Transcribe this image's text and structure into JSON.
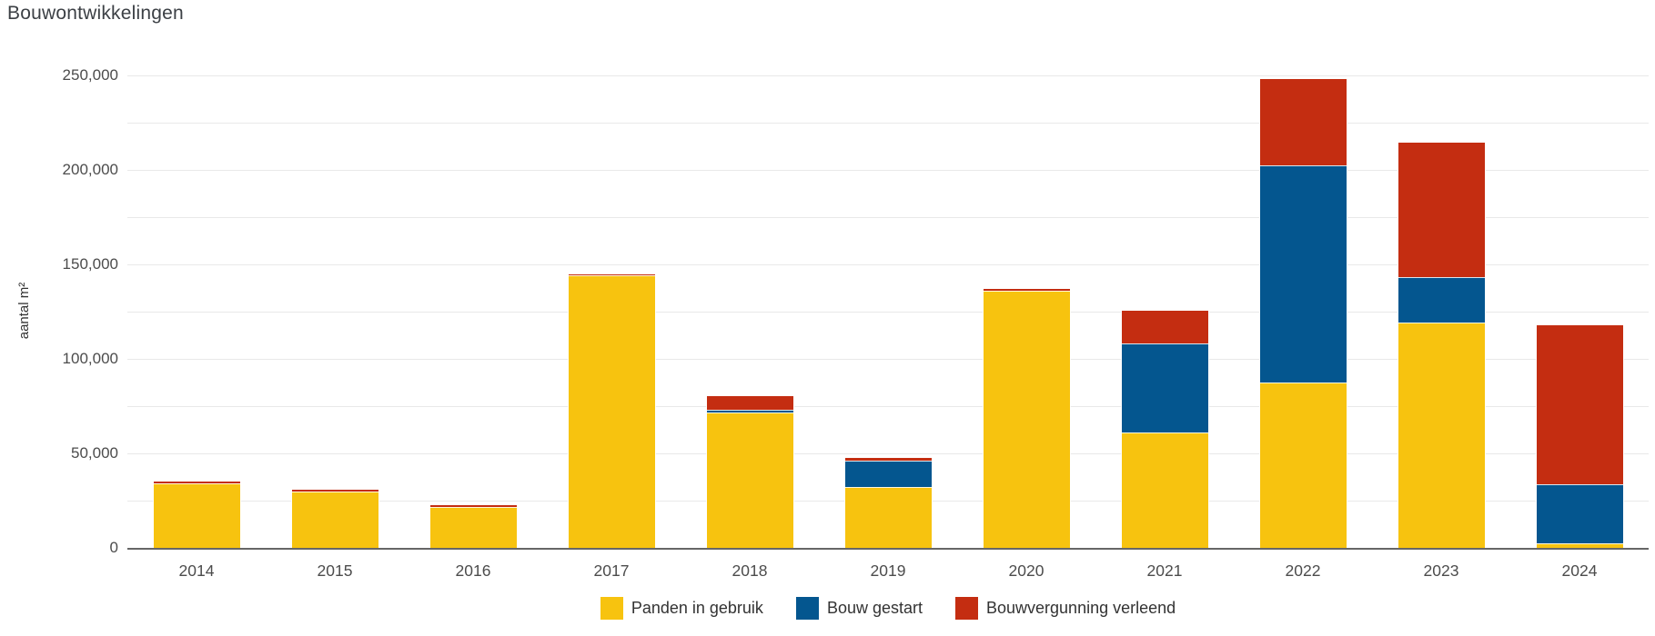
{
  "title": "Bouwontwikkelingen",
  "y_axis": {
    "label": "aantal m²"
  },
  "chart_data": {
    "type": "bar",
    "stacked": true,
    "title": "Bouwontwikkelingen",
    "ylabel": "aantal m²",
    "xlabel": "",
    "categories": [
      "2014",
      "2015",
      "2016",
      "2017",
      "2018",
      "2019",
      "2020",
      "2021",
      "2022",
      "2023",
      "2024"
    ],
    "series": [
      {
        "name": "Panden in gebruik",
        "color": "#F7C30F",
        "values": [
          34000,
          30000,
          21500,
          144000,
          71500,
          32000,
          136000,
          61000,
          87500,
          119000,
          2500
        ]
      },
      {
        "name": "Bouw gestart",
        "color": "#04568F",
        "values": [
          0,
          0,
          0,
          0,
          1500,
          14000,
          0,
          47000,
          115000,
          24500,
          31000
        ]
      },
      {
        "name": "Bouwvergunning verleend",
        "color": "#C42D11",
        "values": [
          1000,
          1000,
          1000,
          500,
          7500,
          1500,
          1000,
          17500,
          45500,
          71000,
          84500
        ]
      }
    ],
    "ylim": [
      0,
      250000
    ],
    "y_ticks": [
      "0",
      "50,000",
      "100,000",
      "150,000",
      "200,000",
      "250,000"
    ],
    "tick_step": 50000,
    "gridline_step": 25000,
    "grid": true,
    "legend_position": "bottom"
  }
}
